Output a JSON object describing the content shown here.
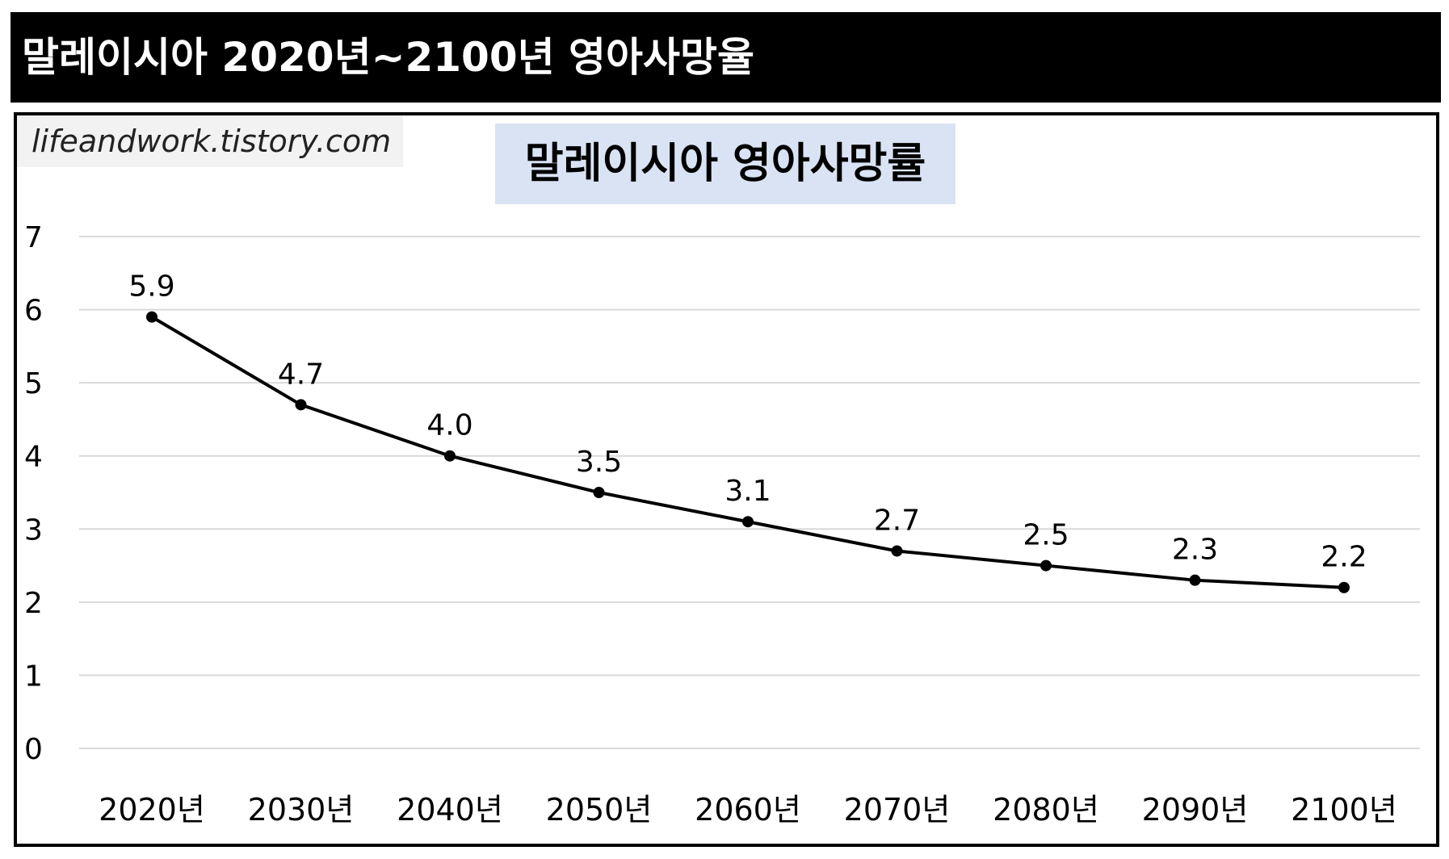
{
  "header": {
    "title": "말레이시아 2020년~2100년 영아사망율"
  },
  "watermark": "lifeandwork.tistory.com",
  "colors": {
    "header_bg": "#000000",
    "header_text": "#ffffff",
    "title_box_bg": "#dae3f3",
    "watermark_bg": "#f2f2f2",
    "line": "#000000",
    "grid": "#d9d9d9"
  },
  "chart_data": {
    "type": "line",
    "title": "말레이시아 영아사망률",
    "categories": [
      "2020년",
      "2030년",
      "2040년",
      "2050년",
      "2060년",
      "2070년",
      "2080년",
      "2090년",
      "2100년"
    ],
    "values": [
      5.9,
      4.7,
      4.0,
      3.5,
      3.1,
      2.7,
      2.5,
      2.3,
      2.2
    ],
    "data_labels": [
      "5.9",
      "4.7",
      "4.0",
      "3.5",
      "3.1",
      "2.7",
      "2.5",
      "2.3",
      "2.2"
    ],
    "yticks": [
      "0",
      "1",
      "2",
      "3",
      "4",
      "5",
      "6",
      "7"
    ],
    "ylim": [
      0,
      7
    ],
    "xlabel": "",
    "ylabel": "",
    "grid": true,
    "legend": "none",
    "markers": true
  }
}
